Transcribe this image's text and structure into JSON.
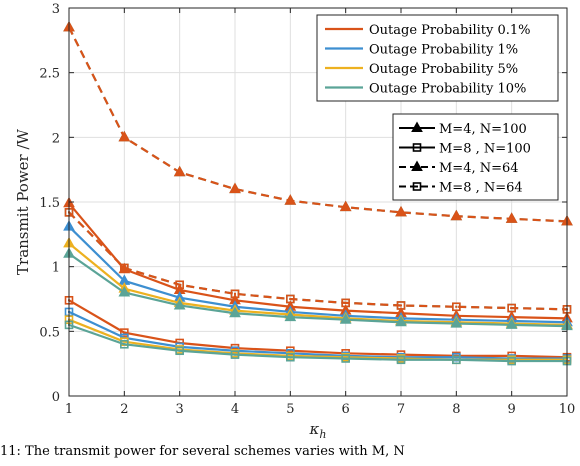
{
  "chart_data": {
    "type": "line",
    "xlabel": "κh",
    "ylabel": "Transmit Power /W",
    "xlim": [
      1,
      10
    ],
    "ylim": [
      0,
      3
    ],
    "xticks": [
      1,
      2,
      3,
      4,
      5,
      6,
      7,
      8,
      9,
      10
    ],
    "yticks": [
      0,
      0.5,
      1,
      1.5,
      2,
      2.5,
      3
    ],
    "grid": true,
    "x": [
      1,
      2,
      3,
      4,
      5,
      6,
      7,
      8,
      9,
      10
    ],
    "colors": {
      "op01": "#d95319",
      "op1": "#3d8fd1",
      "op5": "#edb120",
      "op10": "#5ba497"
    },
    "legend_colors": [
      {
        "label": "Outage Probability 0.1%",
        "color_key": "op01"
      },
      {
        "label": "Outage Probability 1%",
        "color_key": "op1"
      },
      {
        "label": "Outage Probability 5%",
        "color_key": "op5"
      },
      {
        "label": "Outage Probability 10%",
        "color_key": "op10"
      }
    ],
    "legend_styles": [
      {
        "label": "M=4, N=100",
        "dash": "solid",
        "marker": "triangle"
      },
      {
        "label": "M=8 , N=100",
        "dash": "solid",
        "marker": "square"
      },
      {
        "label": "M=4, N=64",
        "dash": "dashed",
        "marker": "triangle"
      },
      {
        "label": "M=8 , N=64",
        "dash": "dashed",
        "marker": "square"
      }
    ],
    "series": [
      {
        "color_key": "op10",
        "config": 2,
        "values": [
          2.85,
          2.0,
          1.73,
          1.6,
          1.51,
          1.46,
          1.42,
          1.39,
          1.37,
          1.35
        ]
      },
      {
        "color_key": "op01",
        "config": 2,
        "values": [
          2.85,
          2.0,
          1.73,
          1.6,
          1.51,
          1.46,
          1.42,
          1.39,
          1.37,
          1.35
        ]
      },
      {
        "color_key": "op10",
        "config": 3,
        "values": [
          1.42,
          0.99,
          0.86,
          0.79,
          0.75,
          0.72,
          0.7,
          0.69,
          0.68,
          0.67
        ]
      },
      {
        "color_key": "op01",
        "config": 3,
        "values": [
          1.42,
          0.99,
          0.86,
          0.79,
          0.75,
          0.72,
          0.7,
          0.69,
          0.68,
          0.67
        ]
      },
      {
        "color_key": "op01",
        "config": 0,
        "values": [
          1.49,
          0.98,
          0.82,
          0.74,
          0.69,
          0.66,
          0.64,
          0.62,
          0.61,
          0.6
        ]
      },
      {
        "color_key": "op1",
        "config": 0,
        "values": [
          1.31,
          0.89,
          0.76,
          0.69,
          0.65,
          0.62,
          0.6,
          0.59,
          0.58,
          0.57
        ]
      },
      {
        "color_key": "op5",
        "config": 0,
        "values": [
          1.18,
          0.83,
          0.72,
          0.66,
          0.63,
          0.6,
          0.58,
          0.57,
          0.56,
          0.55
        ]
      },
      {
        "color_key": "op10",
        "config": 0,
        "values": [
          1.1,
          0.8,
          0.7,
          0.64,
          0.61,
          0.59,
          0.57,
          0.56,
          0.55,
          0.54
        ]
      },
      {
        "color_key": "op01",
        "config": 1,
        "values": [
          0.74,
          0.49,
          0.41,
          0.37,
          0.35,
          0.33,
          0.32,
          0.31,
          0.31,
          0.3
        ]
      },
      {
        "color_key": "op1",
        "config": 1,
        "values": [
          0.65,
          0.45,
          0.38,
          0.35,
          0.33,
          0.31,
          0.3,
          0.3,
          0.29,
          0.29
        ]
      },
      {
        "color_key": "op5",
        "config": 1,
        "values": [
          0.59,
          0.42,
          0.36,
          0.33,
          0.31,
          0.3,
          0.29,
          0.28,
          0.28,
          0.28
        ]
      },
      {
        "color_key": "op10",
        "config": 1,
        "values": [
          0.55,
          0.4,
          0.35,
          0.32,
          0.3,
          0.29,
          0.28,
          0.28,
          0.27,
          0.27
        ]
      }
    ]
  },
  "caption": "11: The transmit power for several schemes varies with M, N"
}
